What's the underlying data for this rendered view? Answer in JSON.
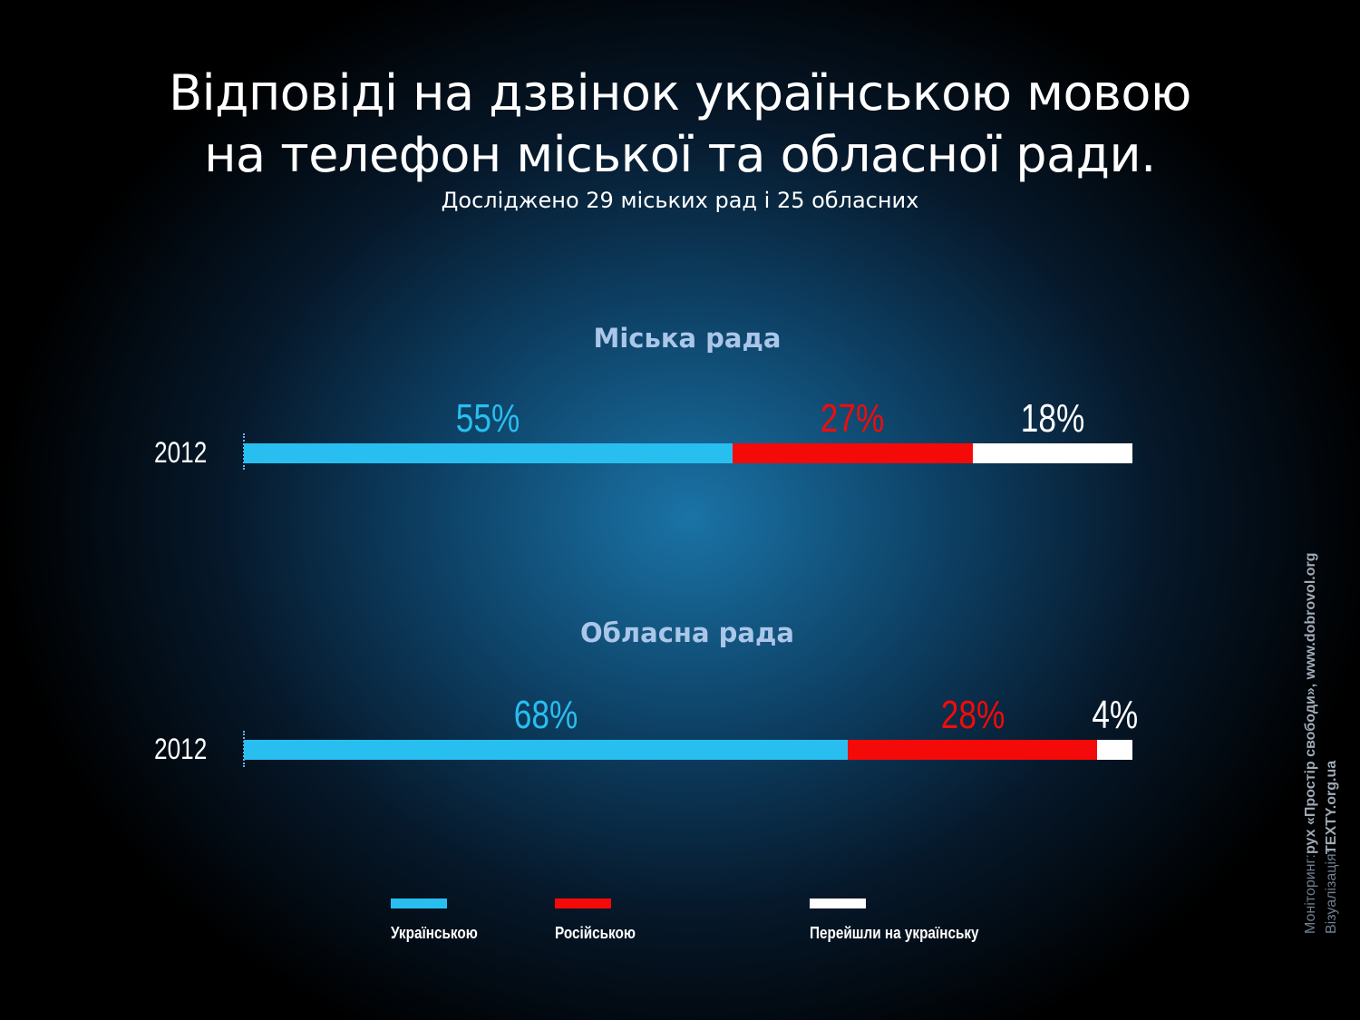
{
  "title_line1": "Відповіді на дзвінок українською мовою",
  "title_line2": "на телефон міської та обласної ради.",
  "subtitle": "Досліджено 29 міських рад і 25 обласних",
  "colors": {
    "ukrainian": "#28bff0",
    "russian": "#f50a0a",
    "switched": "#ffffff",
    "section_title": "#aac6e8"
  },
  "chart_data": [
    {
      "type": "bar",
      "stacked": true,
      "orientation": "horizontal",
      "title": "Міська рада",
      "categories": [
        "2012"
      ],
      "series": [
        {
          "name": "Українською",
          "values": [
            55
          ],
          "label": "55%"
        },
        {
          "name": "Російською",
          "values": [
            27
          ],
          "label": "27%"
        },
        {
          "name": "Перейшли на українську",
          "values": [
            18
          ],
          "label": "18%"
        }
      ],
      "xlim": [
        0,
        100
      ]
    },
    {
      "type": "bar",
      "stacked": true,
      "orientation": "horizontal",
      "title": "Обласна рада",
      "categories": [
        "2012"
      ],
      "series": [
        {
          "name": "Українською",
          "values": [
            68
          ],
          "label": "68%"
        },
        {
          "name": "Російською",
          "values": [
            28
          ],
          "label": "28%"
        },
        {
          "name": "Перейшли на українську",
          "values": [
            4
          ],
          "label": "4%"
        }
      ],
      "xlim": [
        0,
        100
      ]
    }
  ],
  "legend": [
    {
      "label": "Українською",
      "color": "#28bff0"
    },
    {
      "label": "Російською",
      "color": "#f50a0a"
    },
    {
      "label": "Перейшли на українську",
      "color": "#ffffff"
    }
  ],
  "credits": {
    "monitoring_label": "Моніторинг:",
    "monitoring_value": "рух «Простір свободи», www.dobrovol.org",
    "visualization_label": "Візуалізація:",
    "visualization_value": "TEXTY.org.ua"
  }
}
